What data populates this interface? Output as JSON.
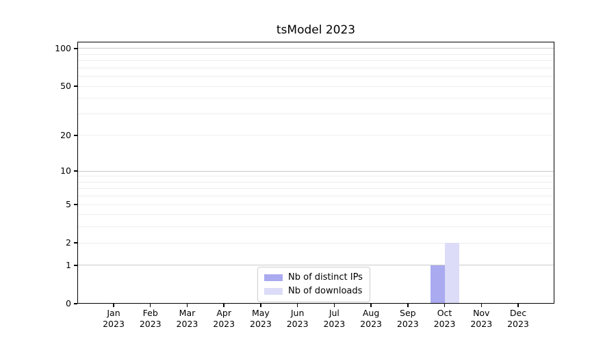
{
  "chart_data": {
    "type": "bar",
    "title": "tsModel 2023",
    "categories": [
      "Jan",
      "Feb",
      "Mar",
      "Apr",
      "May",
      "Jun",
      "Jul",
      "Aug",
      "Sep",
      "Oct",
      "Nov",
      "Dec"
    ],
    "year_label": "2023",
    "series": [
      {
        "name": "Nb of distinct IPs",
        "color": "#aaaaf0",
        "values": [
          0,
          0,
          0,
          0,
          0,
          0,
          0,
          0,
          0,
          1,
          0,
          0
        ]
      },
      {
        "name": "Nb of downloads",
        "color": "#dcdcf8",
        "values": [
          0,
          0,
          0,
          0,
          0,
          0,
          0,
          0,
          0,
          2,
          0,
          0
        ]
      }
    ],
    "xlabel": "",
    "ylabel": "",
    "yscale": "log1p",
    "ylim": [
      0,
      113
    ],
    "yticks": [
      0,
      1,
      2,
      5,
      10,
      20,
      50,
      100
    ],
    "major_gridlines": [
      1,
      10,
      100
    ],
    "minor_gridlines": [
      2,
      3,
      4,
      5,
      6,
      7,
      8,
      9,
      20,
      30,
      40,
      50,
      60,
      70,
      80,
      90
    ],
    "grid": true,
    "legend_position": "lower center"
  },
  "colors": {
    "minor_grid": "#ededed",
    "major_grid": "#c9c9c9",
    "spine": "#000000",
    "text": "#000000",
    "legend_border": "#cccccc"
  }
}
